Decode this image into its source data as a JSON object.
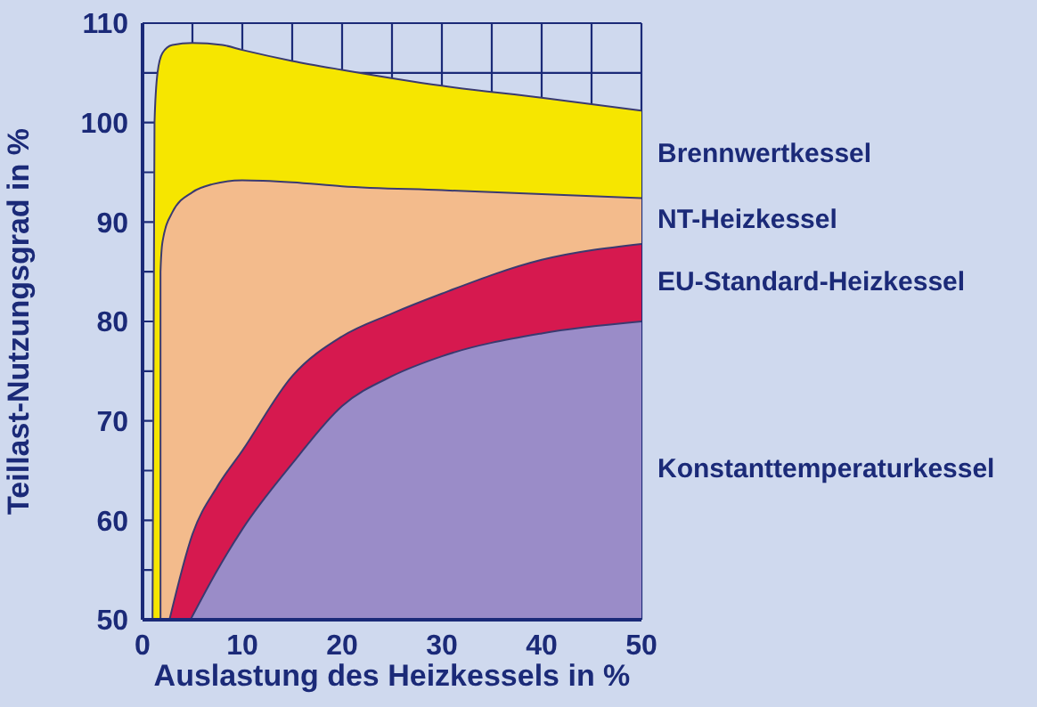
{
  "chart_data": {
    "type": "area",
    "xlabel": "Auslastung des Heizkessels in %",
    "ylabel": "Teillast-Nutzungsgrad in %",
    "xlim": [
      0,
      50
    ],
    "ylim": [
      50,
      110
    ],
    "xticks": [
      0,
      {
        "value": 5,
        "label": null
      },
      10,
      {
        "value": 15,
        "label": null
      },
      20,
      {
        "value": 25,
        "label": null
      },
      30,
      {
        "value": 35,
        "label": null
      },
      40,
      {
        "value": 45,
        "label": null
      },
      50
    ],
    "yticks": [
      50,
      {
        "value": 55,
        "label": null
      },
      60,
      {
        "value": 65,
        "label": null
      },
      70,
      {
        "value": 75,
        "label": null
      },
      80,
      {
        "value": 85,
        "label": null
      },
      90,
      {
        "value": 95,
        "label": null
      },
      100,
      {
        "value": 105,
        "label": null
      },
      110
    ],
    "grid": true,
    "series": [
      {
        "name": "Brennwertkessel",
        "color": "#f6e600",
        "x": [
          1,
          1.2,
          1.5,
          2,
          3,
          5,
          8,
          10,
          15,
          20,
          30,
          40,
          50
        ],
        "values": [
          50,
          100,
          105,
          107,
          107.8,
          108,
          107.8,
          107.3,
          106.2,
          105.3,
          103.7,
          102.5,
          101.2
        ]
      },
      {
        "name": "NT-Heizkessel",
        "color": "#f3bb8c",
        "x": [
          1.8,
          1.8,
          2,
          3,
          5,
          7,
          10,
          15,
          20,
          30,
          40,
          50
        ],
        "values": [
          50,
          85,
          88,
          91,
          93,
          93.8,
          94.2,
          94,
          93.6,
          93.2,
          92.8,
          92.4
        ]
      },
      {
        "name": "EU-Standard-Heizkessel",
        "color": "#d6194f",
        "x": [
          2.7,
          5,
          7.5,
          10,
          15,
          20,
          25,
          30,
          40,
          50
        ],
        "values": [
          50,
          58.6,
          63.4,
          67,
          74.5,
          78.5,
          80.8,
          82.8,
          86.2,
          87.8
        ]
      },
      {
        "name": "Konstanttemperaturkessel",
        "color": "#9a8cc8",
        "x": [
          4.8,
          7.5,
          10,
          15,
          20,
          25,
          30,
          40,
          50
        ],
        "values": [
          50,
          55,
          59.1,
          65.7,
          71.5,
          74.5,
          76.5,
          78.8,
          80
        ]
      }
    ]
  }
}
